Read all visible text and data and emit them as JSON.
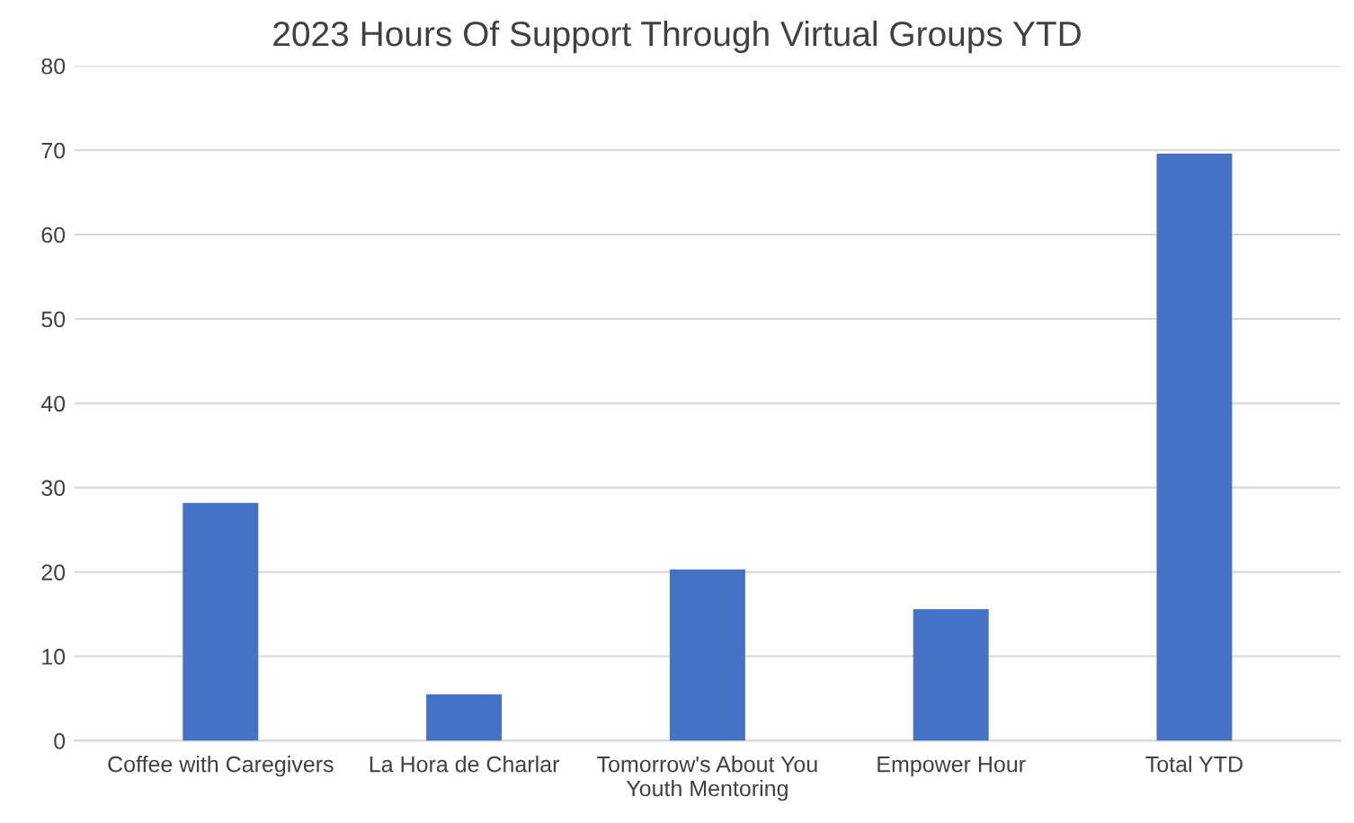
{
  "chart_data": {
    "type": "bar",
    "title": "2023 Hours Of Support Through Virtual Groups YTD",
    "categories": [
      "Coffee with Caregivers",
      "La Hora de Charlar",
      "Tomorrow's About You\nYouth Mentoring",
      "Empower Hour",
      "Total YTD"
    ],
    "values": [
      28.2,
      5.5,
      20.3,
      15.6,
      69.6
    ],
    "color": "#4472c4",
    "ylim": [
      0,
      80
    ],
    "yticks": [
      0,
      10,
      20,
      30,
      40,
      50,
      60,
      70,
      80
    ],
    "grid": "y"
  }
}
